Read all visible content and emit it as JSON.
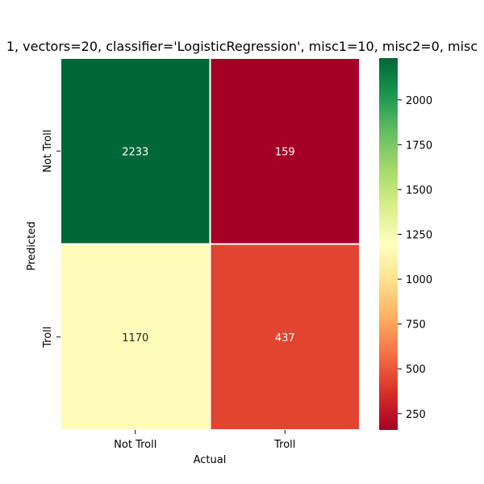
{
  "chart_data": {
    "type": "heatmap",
    "title": "1, vectors=20, classifier='LogisticRegression', misc1=10, misc2=0, misc",
    "xlabel": "Actual",
    "ylabel": "Predicted",
    "x_categories": [
      "Not Troll",
      "Troll"
    ],
    "y_categories": [
      "Not Troll",
      "Troll"
    ],
    "values": [
      [
        2233,
        159
      ],
      [
        1170,
        437
      ]
    ],
    "value_labels": [
      [
        "2233",
        "159"
      ],
      [
        "1170",
        "437"
      ]
    ],
    "colormap": "RdYlGn",
    "colorbar": {
      "range": [
        159,
        2233
      ],
      "ticks": [
        250,
        500,
        750,
        1000,
        1250,
        1500,
        1750,
        2000
      ],
      "tick_labels": [
        "250",
        "500",
        "750",
        "1000",
        "1250",
        "1500",
        "1750",
        "2000"
      ]
    },
    "colors": {
      "high": "#006837",
      "mid": "#ffffbf",
      "low": "#a50026",
      "cell_border": "#ffffff",
      "label_on_dark": "#ffffff",
      "label_on_light": "#262626"
    }
  }
}
